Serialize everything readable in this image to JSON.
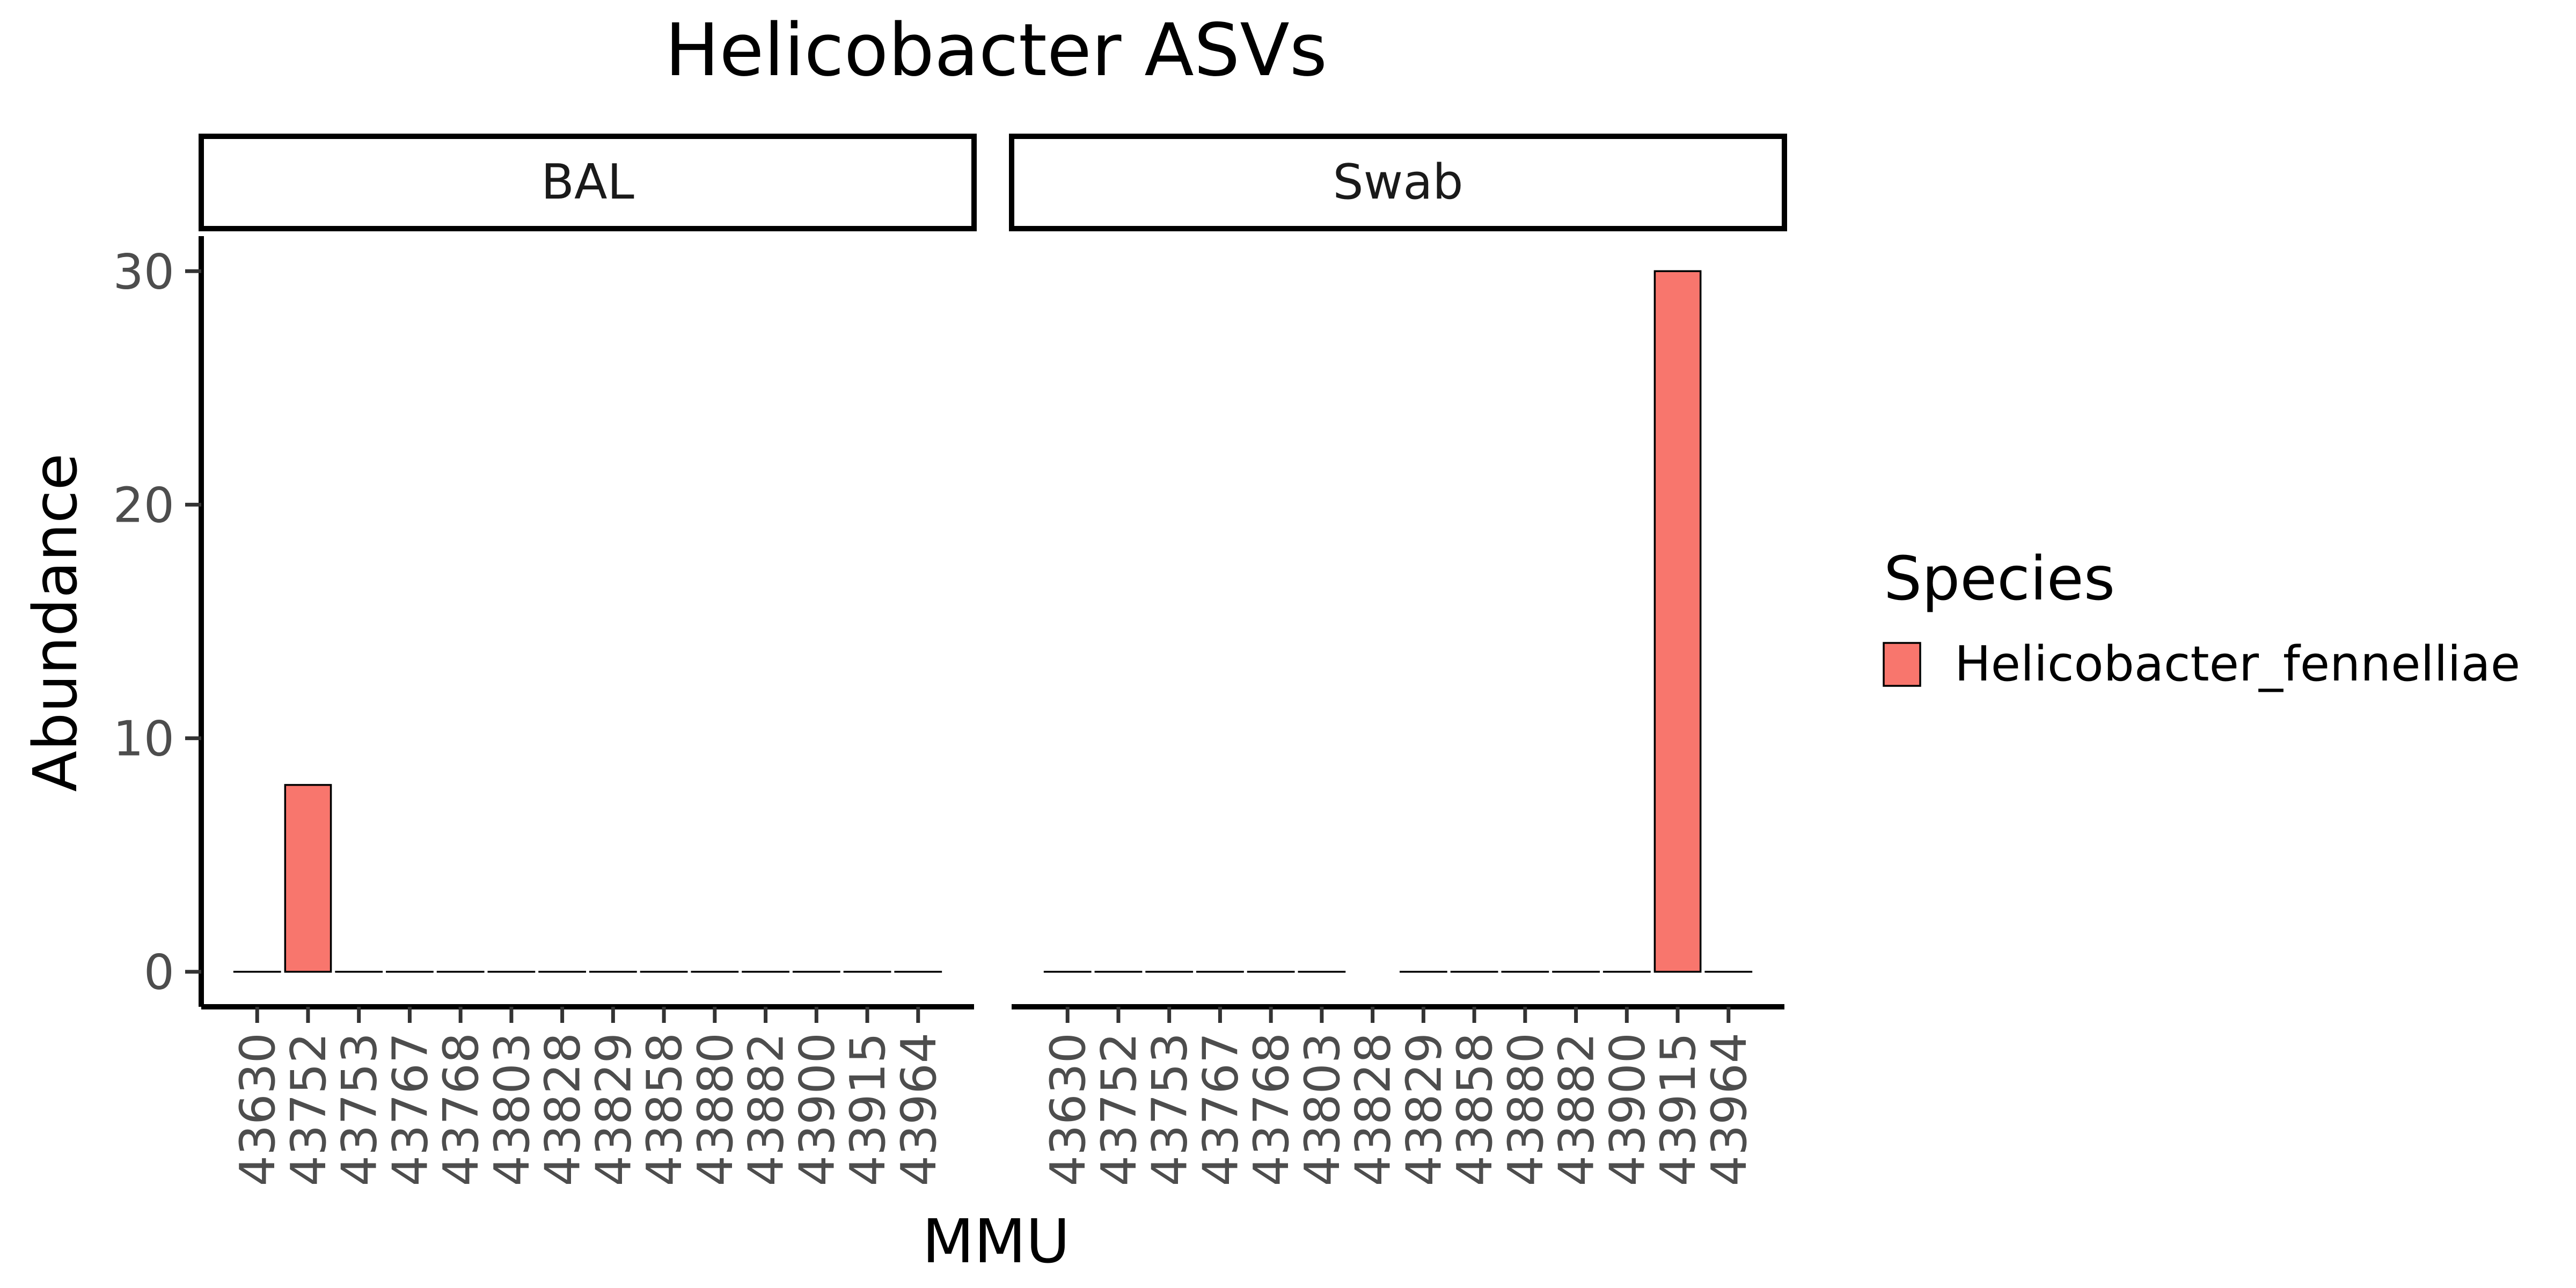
{
  "chart_data": {
    "type": "bar",
    "title": "Helicobacter ASVs",
    "xlabel": "MMU",
    "ylabel": "Abundance",
    "ylim": [
      -1.5,
      31.5
    ],
    "yticks": [
      0,
      10,
      20,
      30
    ],
    "grid": false,
    "legend": {
      "title": "Species",
      "position": "right",
      "entries": [
        {
          "name": "Helicobacter_fennelliae",
          "color": "#F8766D"
        }
      ]
    },
    "categories": [
      "43630",
      "43752",
      "43753",
      "43767",
      "43768",
      "43803",
      "43828",
      "43829",
      "43858",
      "43880",
      "43882",
      "43900",
      "43915",
      "43964"
    ],
    "facets": [
      {
        "label": "BAL",
        "series": [
          {
            "name": "Helicobacter_fennelliae",
            "values": [
              0,
              8,
              0,
              0,
              0,
              0,
              0,
              0,
              0,
              0,
              0,
              0,
              0,
              0
            ]
          }
        ]
      },
      {
        "label": "Swab",
        "series": [
          {
            "name": "Helicobacter_fennelliae",
            "values": [
              0,
              0,
              0,
              0,
              0,
              0,
              null,
              0,
              0,
              0,
              0,
              0,
              30,
              0
            ]
          }
        ]
      }
    ]
  }
}
